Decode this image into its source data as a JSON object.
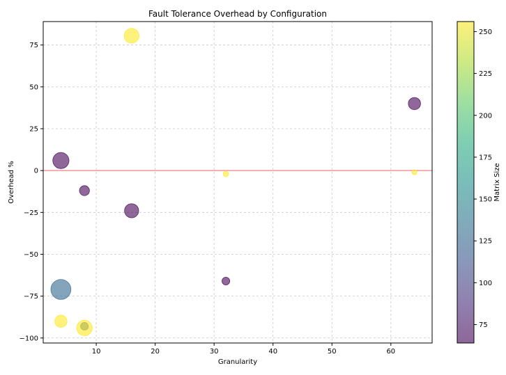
{
  "chart_data": {
    "type": "scatter",
    "title": "Fault Tolerance Overhead by Configuration",
    "xlabel": "Granularity",
    "ylabel": "Overhead %",
    "colorbar_label": "Matrix Size",
    "xlim": [
      1,
      67
    ],
    "ylim": [
      -103,
      89
    ],
    "xticks": [
      10,
      20,
      30,
      40,
      50,
      60
    ],
    "yticks": [
      -100,
      -75,
      -50,
      -25,
      0,
      25,
      50,
      75
    ],
    "clim": [
      64,
      256
    ],
    "cticks": [
      75,
      100,
      125,
      150,
      175,
      200,
      225,
      250
    ],
    "grid": true,
    "reference_line": {
      "y": 0,
      "color": "#f08080"
    },
    "colormap": "viridis",
    "alpha": 0.6,
    "points": [
      {
        "x": 16,
        "y": 80.5,
        "size": 220,
        "c": 256
      },
      {
        "x": 4,
        "y": 6,
        "size": 260,
        "c": 64
      },
      {
        "x": 8,
        "y": -12,
        "size": 100,
        "c": 64
      },
      {
        "x": 16,
        "y": -24,
        "size": 200,
        "c": 64
      },
      {
        "x": 32,
        "y": -2,
        "size": 30,
        "c": 256
      },
      {
        "x": 64,
        "y": 40,
        "size": 150,
        "c": 64
      },
      {
        "x": 64,
        "y": -1,
        "size": 25,
        "c": 256
      },
      {
        "x": 32,
        "y": -66,
        "size": 60,
        "c": 64
      },
      {
        "x": 4,
        "y": -71,
        "size": 400,
        "c": 128
      },
      {
        "x": 4,
        "y": -90,
        "size": 150,
        "c": 256
      },
      {
        "x": 8,
        "y": -93,
        "size": 60,
        "c": 128
      },
      {
        "x": 8,
        "y": -94,
        "size": 240,
        "c": 256
      }
    ]
  }
}
